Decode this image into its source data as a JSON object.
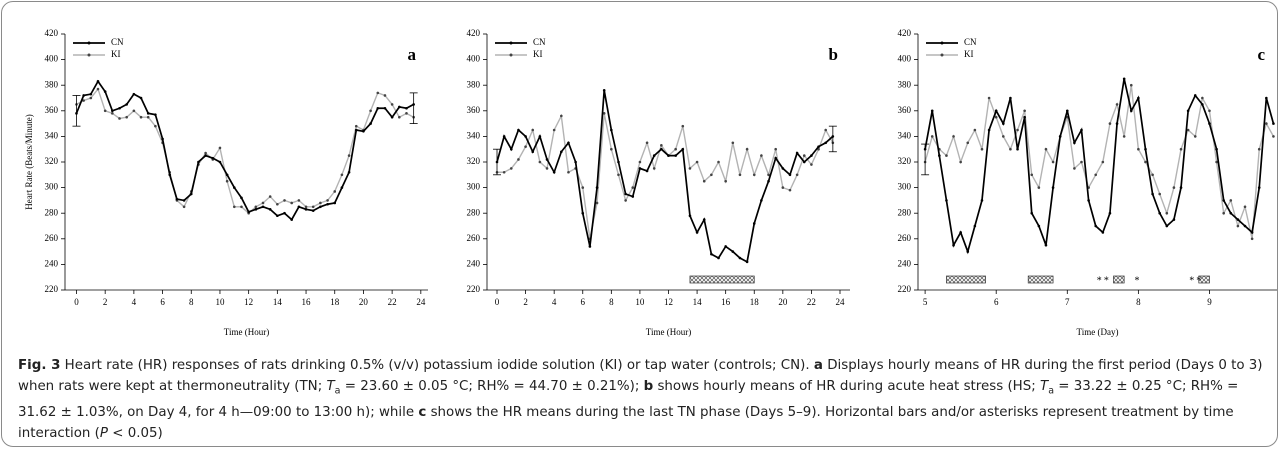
{
  "chart_data": [
    {
      "type": "line",
      "panel": "a",
      "ylabel": "Heart Rate (Beats/Minute)",
      "xlabel": "Time (Hour)",
      "xlim": [
        -0.8,
        24.5
      ],
      "ylim": [
        220,
        420
      ],
      "xticks": [
        0,
        2,
        4,
        6,
        8,
        10,
        12,
        14,
        16,
        18,
        20,
        22,
        24
      ],
      "yticks": [
        220,
        240,
        260,
        280,
        300,
        320,
        340,
        360,
        380,
        400,
        420
      ],
      "x": [
        0,
        0.5,
        1,
        1.5,
        2,
        2.5,
        3,
        3.5,
        4,
        4.5,
        5,
        5.5,
        6,
        6.5,
        7,
        7.5,
        8,
        8.5,
        9,
        9.5,
        10,
        10.5,
        11,
        11.5,
        12,
        12.5,
        13,
        13.5,
        14,
        14.5,
        15,
        15.5,
        16,
        16.5,
        17,
        17.5,
        18,
        18.5,
        19,
        19.5,
        20,
        20.5,
        21,
        21.5,
        22,
        22.5,
        23,
        23.5
      ],
      "series": [
        {
          "name": "CN",
          "color": "#000000",
          "values": [
            358,
            372,
            373,
            383,
            375,
            360,
            362,
            365,
            373,
            370,
            358,
            357,
            338,
            310,
            291,
            290,
            295,
            320,
            325,
            323,
            320,
            310,
            300,
            292,
            281,
            283,
            285,
            283,
            278,
            280,
            275,
            285,
            283,
            282,
            285,
            287,
            288,
            300,
            312,
            345,
            344,
            350,
            362,
            362,
            355,
            363,
            362,
            365
          ]
        },
        {
          "name": "KI",
          "color": "#b3b3b3",
          "values": [
            365,
            368,
            370,
            377,
            360,
            358,
            354,
            355,
            360,
            355,
            355,
            348,
            335,
            312,
            290,
            285,
            297,
            318,
            327,
            322,
            331,
            305,
            285,
            285,
            280,
            285,
            288,
            293,
            287,
            290,
            288,
            290,
            285,
            285,
            288,
            290,
            297,
            310,
            325,
            348,
            345,
            360,
            374,
            372,
            365,
            355,
            358,
            355
          ]
        }
      ],
      "error_bars": [
        {
          "x": 0,
          "y": 360,
          "err": 12
        },
        {
          "x": 23.5,
          "y": 362,
          "err": 12
        }
      ]
    },
    {
      "type": "line",
      "panel": "b",
      "xlabel": "Time (Hour)",
      "xlim": [
        -0.7,
        24.7
      ],
      "ylim": [
        220,
        420
      ],
      "xticks": [
        0,
        2,
        4,
        6,
        8,
        10,
        12,
        14,
        16,
        18,
        20,
        22,
        24
      ],
      "yticks": [
        220,
        240,
        260,
        280,
        300,
        320,
        340,
        360,
        380,
        400,
        420
      ],
      "x": [
        0,
        0.5,
        1,
        1.5,
        2,
        2.5,
        3,
        3.5,
        4,
        4.5,
        5,
        5.5,
        6,
        6.5,
        7,
        7.5,
        8,
        8.5,
        9,
        9.5,
        10,
        10.5,
        11,
        11.5,
        12,
        12.5,
        13,
        13.5,
        14,
        14.5,
        15,
        15.5,
        16,
        16.5,
        17,
        17.5,
        18,
        18.5,
        19,
        19.5,
        20,
        20.5,
        21,
        21.5,
        22,
        22.5,
        23,
        23.5
      ],
      "series": [
        {
          "name": "CN",
          "color": "#000000",
          "values": [
            320,
            340,
            330,
            345,
            340,
            328,
            340,
            322,
            312,
            328,
            335,
            320,
            280,
            254,
            300,
            376,
            345,
            320,
            295,
            293,
            315,
            313,
            325,
            330,
            325,
            325,
            330,
            278,
            265,
            275,
            248,
            245,
            254,
            250,
            245,
            242,
            272,
            290,
            305,
            323,
            315,
            310,
            327,
            320,
            325,
            332,
            335,
            340
          ]
        },
        {
          "name": "KI",
          "color": "#b3b3b3",
          "values": [
            312,
            312,
            315,
            322,
            332,
            345,
            320,
            315,
            345,
            356,
            312,
            315,
            300,
            260,
            288,
            358,
            330,
            310,
            290,
            300,
            320,
            335,
            315,
            333,
            325,
            330,
            348,
            315,
            320,
            305,
            310,
            320,
            305,
            335,
            310,
            330,
            310,
            325,
            310,
            330,
            300,
            298,
            310,
            325,
            318,
            330,
            345,
            335
          ]
        }
      ],
      "error_bars": [
        {
          "x": 0,
          "y": 320,
          "err": 10
        },
        {
          "x": 23.5,
          "y": 338,
          "err": 10
        }
      ],
      "sig_bars": [
        [
          13.5,
          18
        ]
      ]
    },
    {
      "type": "line",
      "panel": "c",
      "xlabel": "Time (Day)",
      "xlim": [
        4.9,
        9.95
      ],
      "ylim": [
        220,
        420
      ],
      "xticks": [
        5,
        6,
        7,
        8,
        9
      ],
      "yticks": [
        220,
        240,
        260,
        280,
        300,
        320,
        340,
        360,
        380,
        400,
        420
      ],
      "x": [
        5.0,
        5.1,
        5.2,
        5.3,
        5.4,
        5.5,
        5.6,
        5.7,
        5.8,
        5.9,
        6.0,
        6.1,
        6.2,
        6.3,
        6.4,
        6.5,
        6.6,
        6.7,
        6.8,
        6.9,
        7.0,
        7.1,
        7.2,
        7.3,
        7.4,
        7.5,
        7.6,
        7.7,
        7.8,
        7.9,
        8.0,
        8.1,
        8.2,
        8.3,
        8.4,
        8.5,
        8.6,
        8.7,
        8.8,
        8.9,
        9.0,
        9.1,
        9.2,
        9.3,
        9.4,
        9.5,
        9.6,
        9.7,
        9.8,
        9.9
      ],
      "series": [
        {
          "name": "CN",
          "color": "#000000",
          "values": [
            330,
            360,
            325,
            290,
            255,
            265,
            250,
            270,
            290,
            345,
            360,
            350,
            370,
            330,
            355,
            280,
            270,
            255,
            300,
            340,
            360,
            335,
            345,
            290,
            270,
            265,
            280,
            350,
            385,
            360,
            370,
            330,
            295,
            280,
            270,
            275,
            300,
            360,
            372,
            365,
            350,
            330,
            290,
            280,
            275,
            270,
            265,
            300,
            370,
            350
          ]
        },
        {
          "name": "KI",
          "color": "#b3b3b3",
          "values": [
            320,
            340,
            330,
            325,
            340,
            320,
            335,
            345,
            330,
            370,
            355,
            340,
            330,
            345,
            360,
            310,
            300,
            330,
            320,
            340,
            355,
            315,
            320,
            300,
            310,
            320,
            350,
            365,
            340,
            380,
            330,
            320,
            310,
            295,
            280,
            300,
            330,
            345,
            340,
            370,
            360,
            320,
            280,
            290,
            270,
            285,
            260,
            330,
            350,
            340
          ]
        }
      ],
      "error_bars": [
        {
          "x": 5.0,
          "y": 322,
          "err": 12
        }
      ],
      "sig_bars": [
        [
          5.3,
          5.85
        ],
        [
          6.45,
          6.8
        ],
        [
          7.65,
          7.8
        ],
        [
          8.85,
          9.0
        ]
      ],
      "annotations": [
        {
          "text": "*",
          "x": 7.45
        },
        {
          "text": "*",
          "x": 7.55
        },
        {
          "text": "*",
          "x": 7.98
        },
        {
          "text": "*",
          "x": 8.75
        },
        {
          "text": "*",
          "x": 8.85
        }
      ]
    }
  ],
  "caption": [
    {
      "text": "Fig. 3",
      "style": "bold"
    },
    {
      "text": "  Heart rate (HR) responses of rats drinking 0.5% (v/v) potassium iodide solution (KI) or tap water (controls; CN). ",
      "style": "normal"
    },
    {
      "text": "a",
      "style": "bold"
    },
    {
      "text": " Displays hourly means of HR during the first period (Days 0 to 3) when rats were kept at thermoneutrality (TN; ",
      "style": "normal"
    },
    {
      "text": "T",
      "style": "italic"
    },
    {
      "text": "a",
      "style": "sub"
    },
    {
      "text": " = 23.60 ± 0.05 °C; RH% = 44.70 ± 0.21%); ",
      "style": "normal"
    },
    {
      "text": "b",
      "style": "bold"
    },
    {
      "text": " shows hourly means of HR during acute heat stress (HS; ",
      "style": "normal"
    },
    {
      "text": "T",
      "style": "italic"
    },
    {
      "text": "a",
      "style": "sub"
    },
    {
      "text": " = 33.22 ± 0.25 °C; RH% = 31.62 ± 1.03%, on Day 4, for 4 h—09:00 to 13:00 h); while ",
      "style": "normal"
    },
    {
      "text": "c",
      "style": "bold"
    },
    {
      "text": " shows the HR means during the last TN phase (Days 5–9). Horizontal bars and/or asterisks represent treatment by time interaction (",
      "style": "normal"
    },
    {
      "text": "P",
      "style": "italic"
    },
    {
      "text": " < 0.05)",
      "style": "normal"
    }
  ]
}
